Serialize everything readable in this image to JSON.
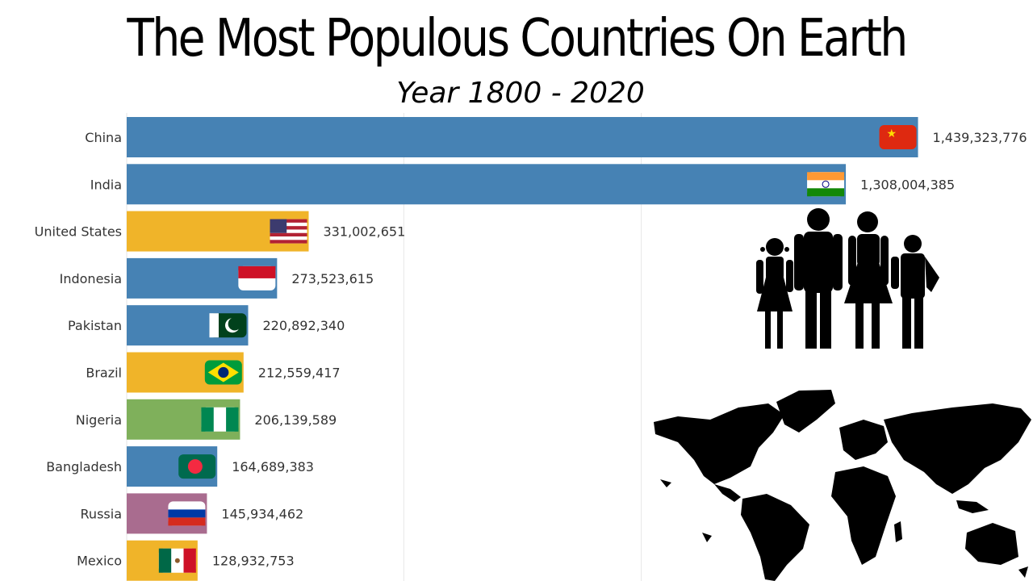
{
  "colors": {
    "blue": "#4682b4",
    "yellow": "#f0b429",
    "green": "#7fb05b",
    "mauve": "#a96c8f",
    "grid": "#e6e6e6",
    "illustration": "#000000"
  },
  "icons": [
    "family-silhouette-icon",
    "world-map-icon"
  ],
  "chart_data": {
    "type": "bar",
    "orientation": "horizontal",
    "title": "The Most Populous Countries On Earth",
    "subtitle": "Year 1800 - 2020",
    "xlim": [
      0,
      1440000000
    ],
    "grid": true,
    "categories": [
      "China",
      "India",
      "United States",
      "Indonesia",
      "Pakistan",
      "Brazil",
      "Nigeria",
      "Bangladesh",
      "Russia",
      "Mexico"
    ],
    "values": [
      1439323776,
      1308004385,
      331002651,
      273523615,
      220892340,
      212559417,
      206139589,
      164689383,
      145934462,
      128932753
    ],
    "value_labels": [
      "1,439,323,776",
      "1,308,004,385",
      "331,002,651",
      "273,523,615",
      "220,892,340",
      "212,559,417",
      "206,139,589",
      "164,689,383",
      "145,934,462",
      "128,932,753"
    ],
    "bar_colors": [
      "blue",
      "blue",
      "yellow",
      "blue",
      "blue",
      "yellow",
      "green",
      "blue",
      "mauve",
      "yellow"
    ],
    "flags": [
      "china-flag-icon",
      "india-flag-icon",
      "united-states-flag-icon",
      "indonesia-flag-icon",
      "pakistan-flag-icon",
      "brazil-flag-icon",
      "nigeria-flag-icon",
      "bangladesh-flag-icon",
      "russia-flag-icon",
      "mexico-flag-icon"
    ]
  }
}
